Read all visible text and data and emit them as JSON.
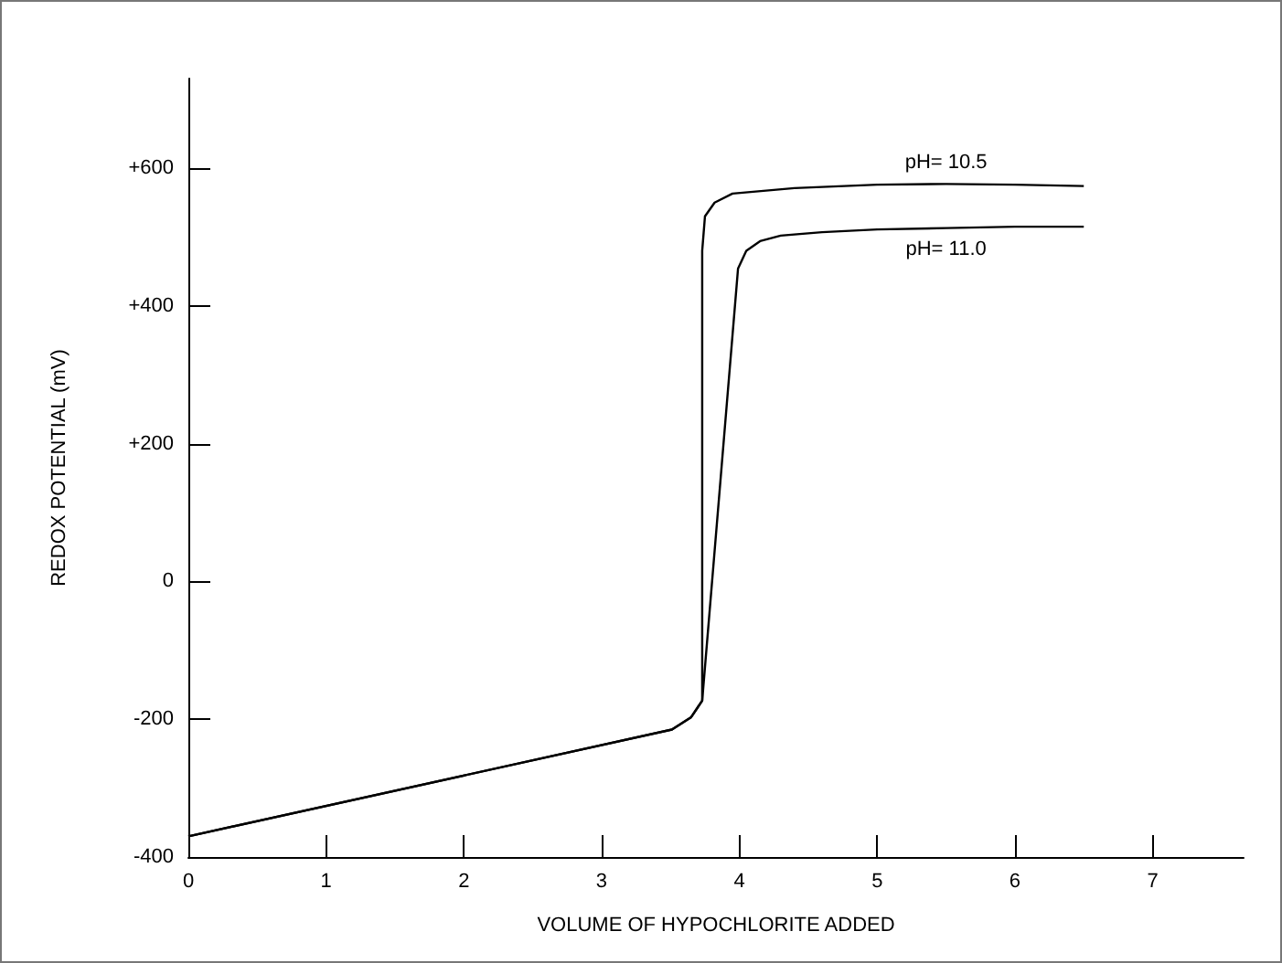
{
  "chart_data": {
    "type": "line",
    "xlabel": "VOLUME OF HYPOCHLORITE ADDED",
    "ylabel": "REDOX POTENTIAL (mV)",
    "xlim": [
      0,
      7.66
    ],
    "xticks": [
      0,
      1,
      2,
      3,
      4,
      5,
      6,
      7
    ],
    "ylim": [
      -400,
      730
    ],
    "yticks": [
      {
        "value": -400,
        "label": "-400"
      },
      {
        "value": -200,
        "label": "-200"
      },
      0,
      {
        "value": 200,
        "label": "+200"
      },
      {
        "value": 400,
        "label": "+400"
      },
      {
        "value": 600,
        "label": "+600"
      }
    ],
    "grid": false,
    "marker": "none",
    "line_style": "solid",
    "series": [
      {
        "name": "pH= 10.5",
        "color": "#000000",
        "x": [
          0,
          3.51,
          3.65,
          3.73,
          3.73,
          3.75,
          3.82,
          3.95,
          4.4,
          5.0,
          5.5,
          6.0,
          6.5
        ],
        "values": [
          -370,
          -215,
          -197,
          -173,
          480,
          530,
          550,
          563,
          571,
          576,
          577,
          576,
          574
        ]
      },
      {
        "name": "pH= 11.0",
        "color": "#000000",
        "x": [
          0,
          3.51,
          3.65,
          3.73,
          3.99,
          4.05,
          4.15,
          4.3,
          4.6,
          5.0,
          5.5,
          6.0,
          6.5
        ],
        "values": [
          -370,
          -215,
          -197,
          -173,
          454,
          480,
          494,
          502,
          507,
          511,
          513,
          515,
          515
        ]
      }
    ]
  }
}
